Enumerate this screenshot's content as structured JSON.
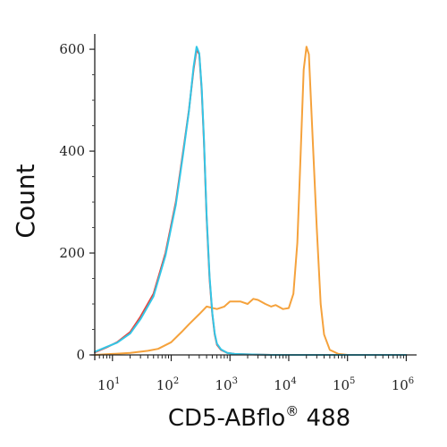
{
  "chart_data": {
    "type": "line",
    "xlabel_main": "CD5-ABflo",
    "xlabel_sup": "®",
    "xlabel_tail": " 488",
    "ylabel": "Count",
    "x_scale": "log",
    "xlim": [
      5,
      1500000
    ],
    "ylim": [
      0,
      630
    ],
    "x_ticks": [
      {
        "base": "10",
        "exp": "1"
      },
      {
        "base": "10",
        "exp": "2"
      },
      {
        "base": "10",
        "exp": "3"
      },
      {
        "base": "10",
        "exp": "4"
      },
      {
        "base": "10",
        "exp": "5"
      },
      {
        "base": "10",
        "exp": "6"
      }
    ],
    "y_ticks": [
      "0",
      "200",
      "400",
      "600"
    ],
    "grid": false,
    "series": [
      {
        "color": "#e5443c",
        "x": [
          5,
          8,
          12,
          20,
          30,
          50,
          80,
          120,
          160,
          200,
          240,
          270,
          300,
          330,
          360,
          400,
          450,
          500,
          550,
          600,
          700,
          900,
          1200,
          2000,
          5000,
          20000,
          100000,
          1000000
        ],
        "y": [
          5,
          15,
          25,
          45,
          75,
          120,
          200,
          300,
          400,
          480,
          560,
          600,
          590,
          520,
          420,
          270,
          150,
          80,
          40,
          20,
          10,
          4,
          2,
          1,
          0,
          0,
          0,
          0
        ]
      },
      {
        "color": "#33c6e6",
        "x": [
          5,
          8,
          12,
          20,
          30,
          50,
          80,
          120,
          160,
          200,
          240,
          270,
          300,
          330,
          360,
          400,
          450,
          500,
          550,
          600,
          700,
          900,
          1200,
          2000,
          5000,
          20000,
          100000,
          1000000
        ],
        "y": [
          6,
          16,
          24,
          42,
          70,
          115,
          195,
          295,
          395,
          478,
          565,
          605,
          592,
          525,
          425,
          275,
          155,
          82,
          42,
          22,
          11,
          4,
          2,
          1,
          0,
          0,
          0,
          0
        ]
      },
      {
        "color": "#f5a23c",
        "x": [
          5,
          10,
          20,
          40,
          60,
          100,
          150,
          200,
          300,
          400,
          600,
          800,
          1000,
          1500,
          2000,
          2500,
          3000,
          4000,
          5000,
          6000,
          8000,
          10000,
          12000,
          14000,
          16000,
          18000,
          20000,
          22000,
          25000,
          30000,
          35000,
          40000,
          50000,
          70000,
          100000,
          1000000
        ],
        "y": [
          0,
          2,
          4,
          8,
          12,
          25,
          45,
          60,
          80,
          95,
          90,
          95,
          105,
          105,
          100,
          110,
          108,
          100,
          95,
          98,
          90,
          92,
          120,
          220,
          400,
          560,
          605,
          590,
          450,
          250,
          100,
          40,
          10,
          2,
          0,
          0
        ]
      }
    ]
  }
}
